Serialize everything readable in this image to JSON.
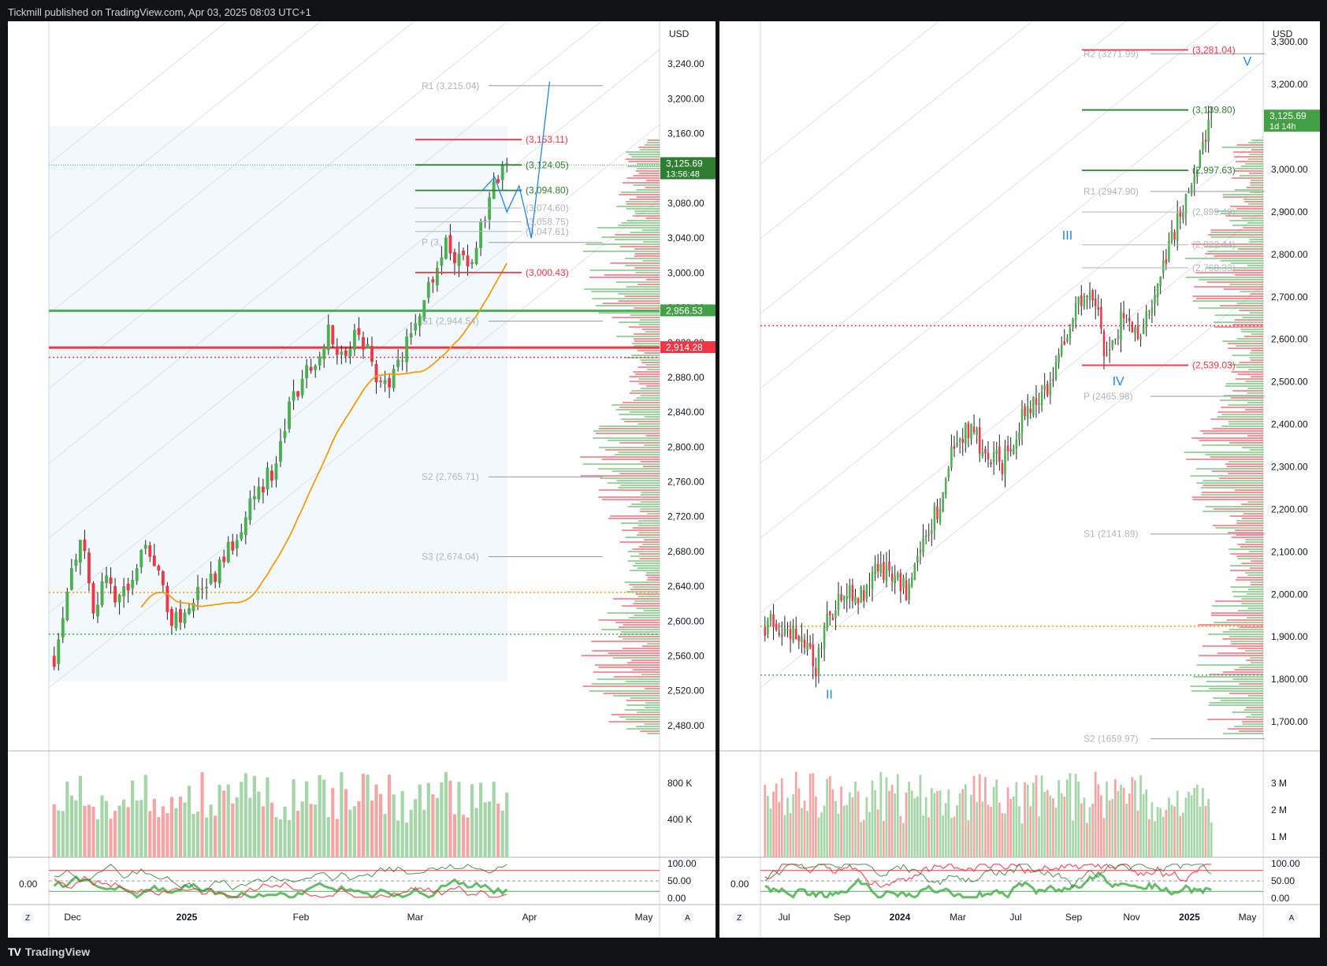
{
  "header": {
    "publisher": "Tickmill published on TradingView.com, Apr 03, 2025 08:03 UTC+1"
  },
  "footer": {
    "brand": "TradingView",
    "logo": "TV"
  },
  "colors": {
    "up": "#4caf50",
    "down": "#f23645",
    "vol_up": "#a5d6a7",
    "vol_down": "#f7a4a4",
    "ma": "#f39c12",
    "pivot_text": "#b2b5be",
    "wave": "#1e88e5"
  },
  "left_chart": {
    "currency": "USD",
    "price_ticks": [
      "3,240.00",
      "3,200.00",
      "3,160.00",
      "3,120.00",
      "3,080.00",
      "3,040.00",
      "3,000.00",
      "2,960.00",
      "2,920.00",
      "2,880.00",
      "2,840.00",
      "2,800.00",
      "2,760.00",
      "2,720.00",
      "2,680.00",
      "2,640.00",
      "2,600.00",
      "2,560.00",
      "2,520.00",
      "2,480.00"
    ],
    "price_min": 2460,
    "price_max": 3280,
    "time_labels": [
      "Dec",
      "2025",
      "Feb",
      "Mar",
      "Apr",
      "May"
    ],
    "pivots": [
      {
        "label": "R1 (3,215.04)",
        "value": 3215.04
      },
      {
        "label": "P (3,",
        "value": 3035
      },
      {
        "label": "S1 (2,944.54)",
        "value": 2944.54
      },
      {
        "label": "S2 (2,765.71)",
        "value": 2765.71
      },
      {
        "label": "S3 (2,674.04)",
        "value": 2674.04
      }
    ],
    "levels": [
      {
        "label": "(3,153.11)",
        "value": 3153.11,
        "color": "red"
      },
      {
        "label": "(3,124.05)",
        "value": 3124.05,
        "color": "green"
      },
      {
        "label": "(3,094.80)",
        "value": 3094.8,
        "color": "green"
      },
      {
        "label": "(3,074.60)",
        "value": 3074.6,
        "color": "grey"
      },
      {
        "label": "(3,058.75)",
        "value": 3058.75,
        "color": "grey"
      },
      {
        "label": "(3,047.61)",
        "value": 3047.61,
        "color": "grey"
      },
      {
        "label": "(3,000.43)",
        "value": 3000.43,
        "color": "red"
      }
    ],
    "badges": [
      {
        "label": "3,125.69",
        "sub": "13:56:48",
        "value": 3125.69,
        "color": "#2e7d32"
      },
      {
        "label": "2,956.53",
        "value": 2956.53,
        "color": "#43a047"
      },
      {
        "label": "2,914.28",
        "value": 2914.28,
        "color": "#f23645"
      }
    ],
    "hlines": [
      {
        "value": 2956.53,
        "color": "#4caf50",
        "width": 3
      },
      {
        "value": 2914.28,
        "color": "#f23645",
        "width": 3
      },
      {
        "value": 2903,
        "color": "#f23645",
        "width": 1.5,
        "dash": "2,3"
      },
      {
        "value": 2633,
        "color": "#f39c12",
        "width": 1.5,
        "dash": "2,3"
      },
      {
        "value": 2585,
        "color": "#4caf50",
        "width": 1.5,
        "dash": "2,3"
      },
      {
        "value": 3124,
        "color": "#4caf50",
        "width": 1,
        "dash": "1,2"
      }
    ],
    "volume_ticks": [
      "800 K",
      "400 K"
    ],
    "osc_ticks": [
      "100.00",
      "50.00",
      "0.00"
    ],
    "osc_left": "0.00",
    "corner_left": "Z",
    "corner_right": "A"
  },
  "right_chart": {
    "currency": "USD",
    "price_ticks": [
      "3,300.00",
      "3,200.00",
      "3,100.00",
      "3,000.00",
      "2,900.00",
      "2,800.00",
      "2,700.00",
      "2,600.00",
      "2,500.00",
      "2,400.00",
      "2,300.00",
      "2,200.00",
      "2,100.00",
      "2,000.00",
      "1,900.00",
      "1,800.00",
      "1,700.00"
    ],
    "price_min": 1650,
    "price_max": 3330,
    "time_labels": [
      "Jul",
      "Sep",
      "2024",
      "Mar",
      "Jul",
      "Sep",
      "Nov",
      "2025",
      "May"
    ],
    "pivots": [
      {
        "label": "R2 (3271.99)",
        "value": 3271.99
      },
      {
        "label": "R1 (2947.90)",
        "value": 2947.9
      },
      {
        "label": "P (2465.98)",
        "value": 2465.98
      },
      {
        "label": "S1 (2141.89)",
        "value": 2141.89
      },
      {
        "label": "S2 (1659.97)",
        "value": 1659.97
      }
    ],
    "levels": [
      {
        "label": "(3,281.04)",
        "value": 3281.04,
        "color": "red"
      },
      {
        "label": "(3,139.80)",
        "value": 3139.8,
        "color": "green"
      },
      {
        "label": "(2,997.63)",
        "value": 2997.63,
        "color": "green"
      },
      {
        "label": "(2,899.49)",
        "value": 2899.49,
        "color": "grey"
      },
      {
        "label": "(2,822.44)",
        "value": 2822.44,
        "color": "grey"
      },
      {
        "label": "(2,768.33)",
        "value": 2768.33,
        "color": "grey"
      },
      {
        "label": "(2,539.03)",
        "value": 2539.03,
        "color": "red"
      }
    ],
    "waves": [
      {
        "label": "II",
        "value": 1755,
        "t": 0.13
      },
      {
        "label": "III",
        "value": 2835,
        "t": 0.6
      },
      {
        "label": "IV",
        "value": 2492,
        "t": 0.7
      },
      {
        "label": "V",
        "value": 3245,
        "t": 0.96
      }
    ],
    "badges": [
      {
        "label": "3,125.69",
        "sub": "1d 14h",
        "value": 3125.69,
        "color": "#43a047"
      }
    ],
    "hlines": [
      {
        "value": 2632,
        "color": "#f23645",
        "width": 1.5,
        "dash": "2,3"
      },
      {
        "value": 1925,
        "color": "#f39c12",
        "width": 1.5,
        "dash": "2,3"
      },
      {
        "value": 1810,
        "color": "#4caf50",
        "width": 1.5,
        "dash": "2,3"
      }
    ],
    "volume_ticks": [
      "3 M",
      "2 M",
      "1 M"
    ],
    "osc_ticks": [
      "100.00",
      "50.00",
      "0.00"
    ],
    "osc_left": "0.00",
    "corner_left": "Z",
    "corner_right": "A"
  },
  "chart_data": [
    {
      "type": "candlestick",
      "title": "",
      "currency": "USD",
      "x_range": [
        "Nov 2024",
        "May 2025"
      ],
      "ylim": [
        2460,
        3280
      ],
      "last_price": 3125.69,
      "close_path": [
        [
          0,
          2560
        ],
        [
          3,
          2640
        ],
        [
          6,
          2700
        ],
        [
          9,
          2620
        ],
        [
          12,
          2640
        ],
        [
          15,
          2630
        ],
        [
          18,
          2640
        ],
        [
          21,
          2700
        ],
        [
          24,
          2650
        ],
        [
          27,
          2600
        ],
        [
          30,
          2610
        ],
        [
          33,
          2630
        ],
        [
          36,
          2650
        ],
        [
          39,
          2670
        ],
        [
          42,
          2700
        ],
        [
          45,
          2740
        ],
        [
          48,
          2760
        ],
        [
          51,
          2780
        ],
        [
          54,
          2840
        ],
        [
          57,
          2880
        ],
        [
          60,
          2900
        ],
        [
          63,
          2940
        ],
        [
          66,
          2900
        ],
        [
          69,
          2930
        ],
        [
          72,
          2910
        ],
        [
          75,
          2870
        ],
        [
          78,
          2880
        ],
        [
          81,
          2920
        ],
        [
          84,
          2960
        ],
        [
          87,
          3000
        ],
        [
          90,
          3040
        ],
        [
          93,
          3010
        ],
        [
          96,
          3020
        ],
        [
          99,
          3060
        ],
        [
          102,
          3110
        ],
        [
          104,
          3125
        ]
      ]
    },
    {
      "type": "candlestick",
      "title": "",
      "currency": "USD",
      "x_range": [
        "Jun 2023",
        "May 2025"
      ],
      "ylim": [
        1650,
        3330
      ],
      "last_price": 3125.69,
      "close_path": [
        [
          0,
          1930
        ],
        [
          8,
          1920
        ],
        [
          14,
          1870
        ],
        [
          18,
          1830
        ],
        [
          22,
          1950
        ],
        [
          28,
          2000
        ],
        [
          34,
          1990
        ],
        [
          40,
          2070
        ],
        [
          46,
          2030
        ],
        [
          50,
          2010
        ],
        [
          56,
          2150
        ],
        [
          62,
          2200
        ],
        [
          66,
          2340
        ],
        [
          72,
          2390
        ],
        [
          78,
          2330
        ],
        [
          84,
          2310
        ],
        [
          90,
          2400
        ],
        [
          96,
          2460
        ],
        [
          102,
          2510
        ],
        [
          108,
          2640
        ],
        [
          114,
          2720
        ],
        [
          118,
          2680
        ],
        [
          120,
          2560
        ],
        [
          126,
          2640
        ],
        [
          132,
          2620
        ],
        [
          138,
          2700
        ],
        [
          144,
          2850
        ],
        [
          148,
          2900
        ],
        [
          152,
          3000
        ],
        [
          156,
          3090
        ],
        [
          158,
          3125
        ]
      ]
    }
  ]
}
